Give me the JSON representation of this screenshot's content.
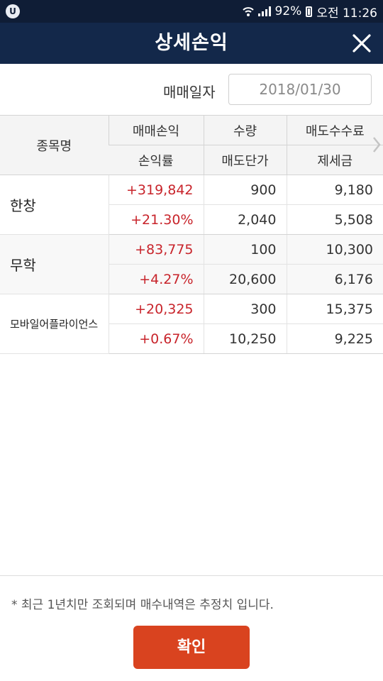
{
  "status_bar": {
    "battery": "92%",
    "time": "오전 11:26"
  },
  "header": {
    "title": "상세손익"
  },
  "date_filter": {
    "label": "매매일자",
    "value": "2018/01/30"
  },
  "table": {
    "headers": {
      "name": "종목명",
      "row1": [
        "매매손익",
        "수량",
        "매도수수료"
      ],
      "row2": [
        "손익률",
        "매도단가",
        "제세금"
      ]
    },
    "rows": [
      {
        "name": "한창",
        "profit": "+319,842",
        "quantity": "900",
        "sell_fee": "9,180",
        "rate": "+21.30%",
        "sell_price": "2,040",
        "tax": "5,508"
      },
      {
        "name": "무학",
        "profit": "+83,775",
        "quantity": "100",
        "sell_fee": "10,300",
        "rate": "+4.27%",
        "sell_price": "20,600",
        "tax": "6,176"
      },
      {
        "name": "모바일어플라이언스",
        "profit": "+20,325",
        "quantity": "300",
        "sell_fee": "15,375",
        "rate": "+0.67%",
        "sell_price": "10,250",
        "tax": "9,225"
      }
    ]
  },
  "footer": {
    "note": "* 최근 1년치만 조회되며 매수내역은 추정치 입니다.",
    "confirm_label": "확인"
  },
  "colors": {
    "header_bg": "#13284a",
    "statusbar_bg": "#0f1d36",
    "profit_red": "#c8242b",
    "confirm_orange": "#d9431f"
  }
}
